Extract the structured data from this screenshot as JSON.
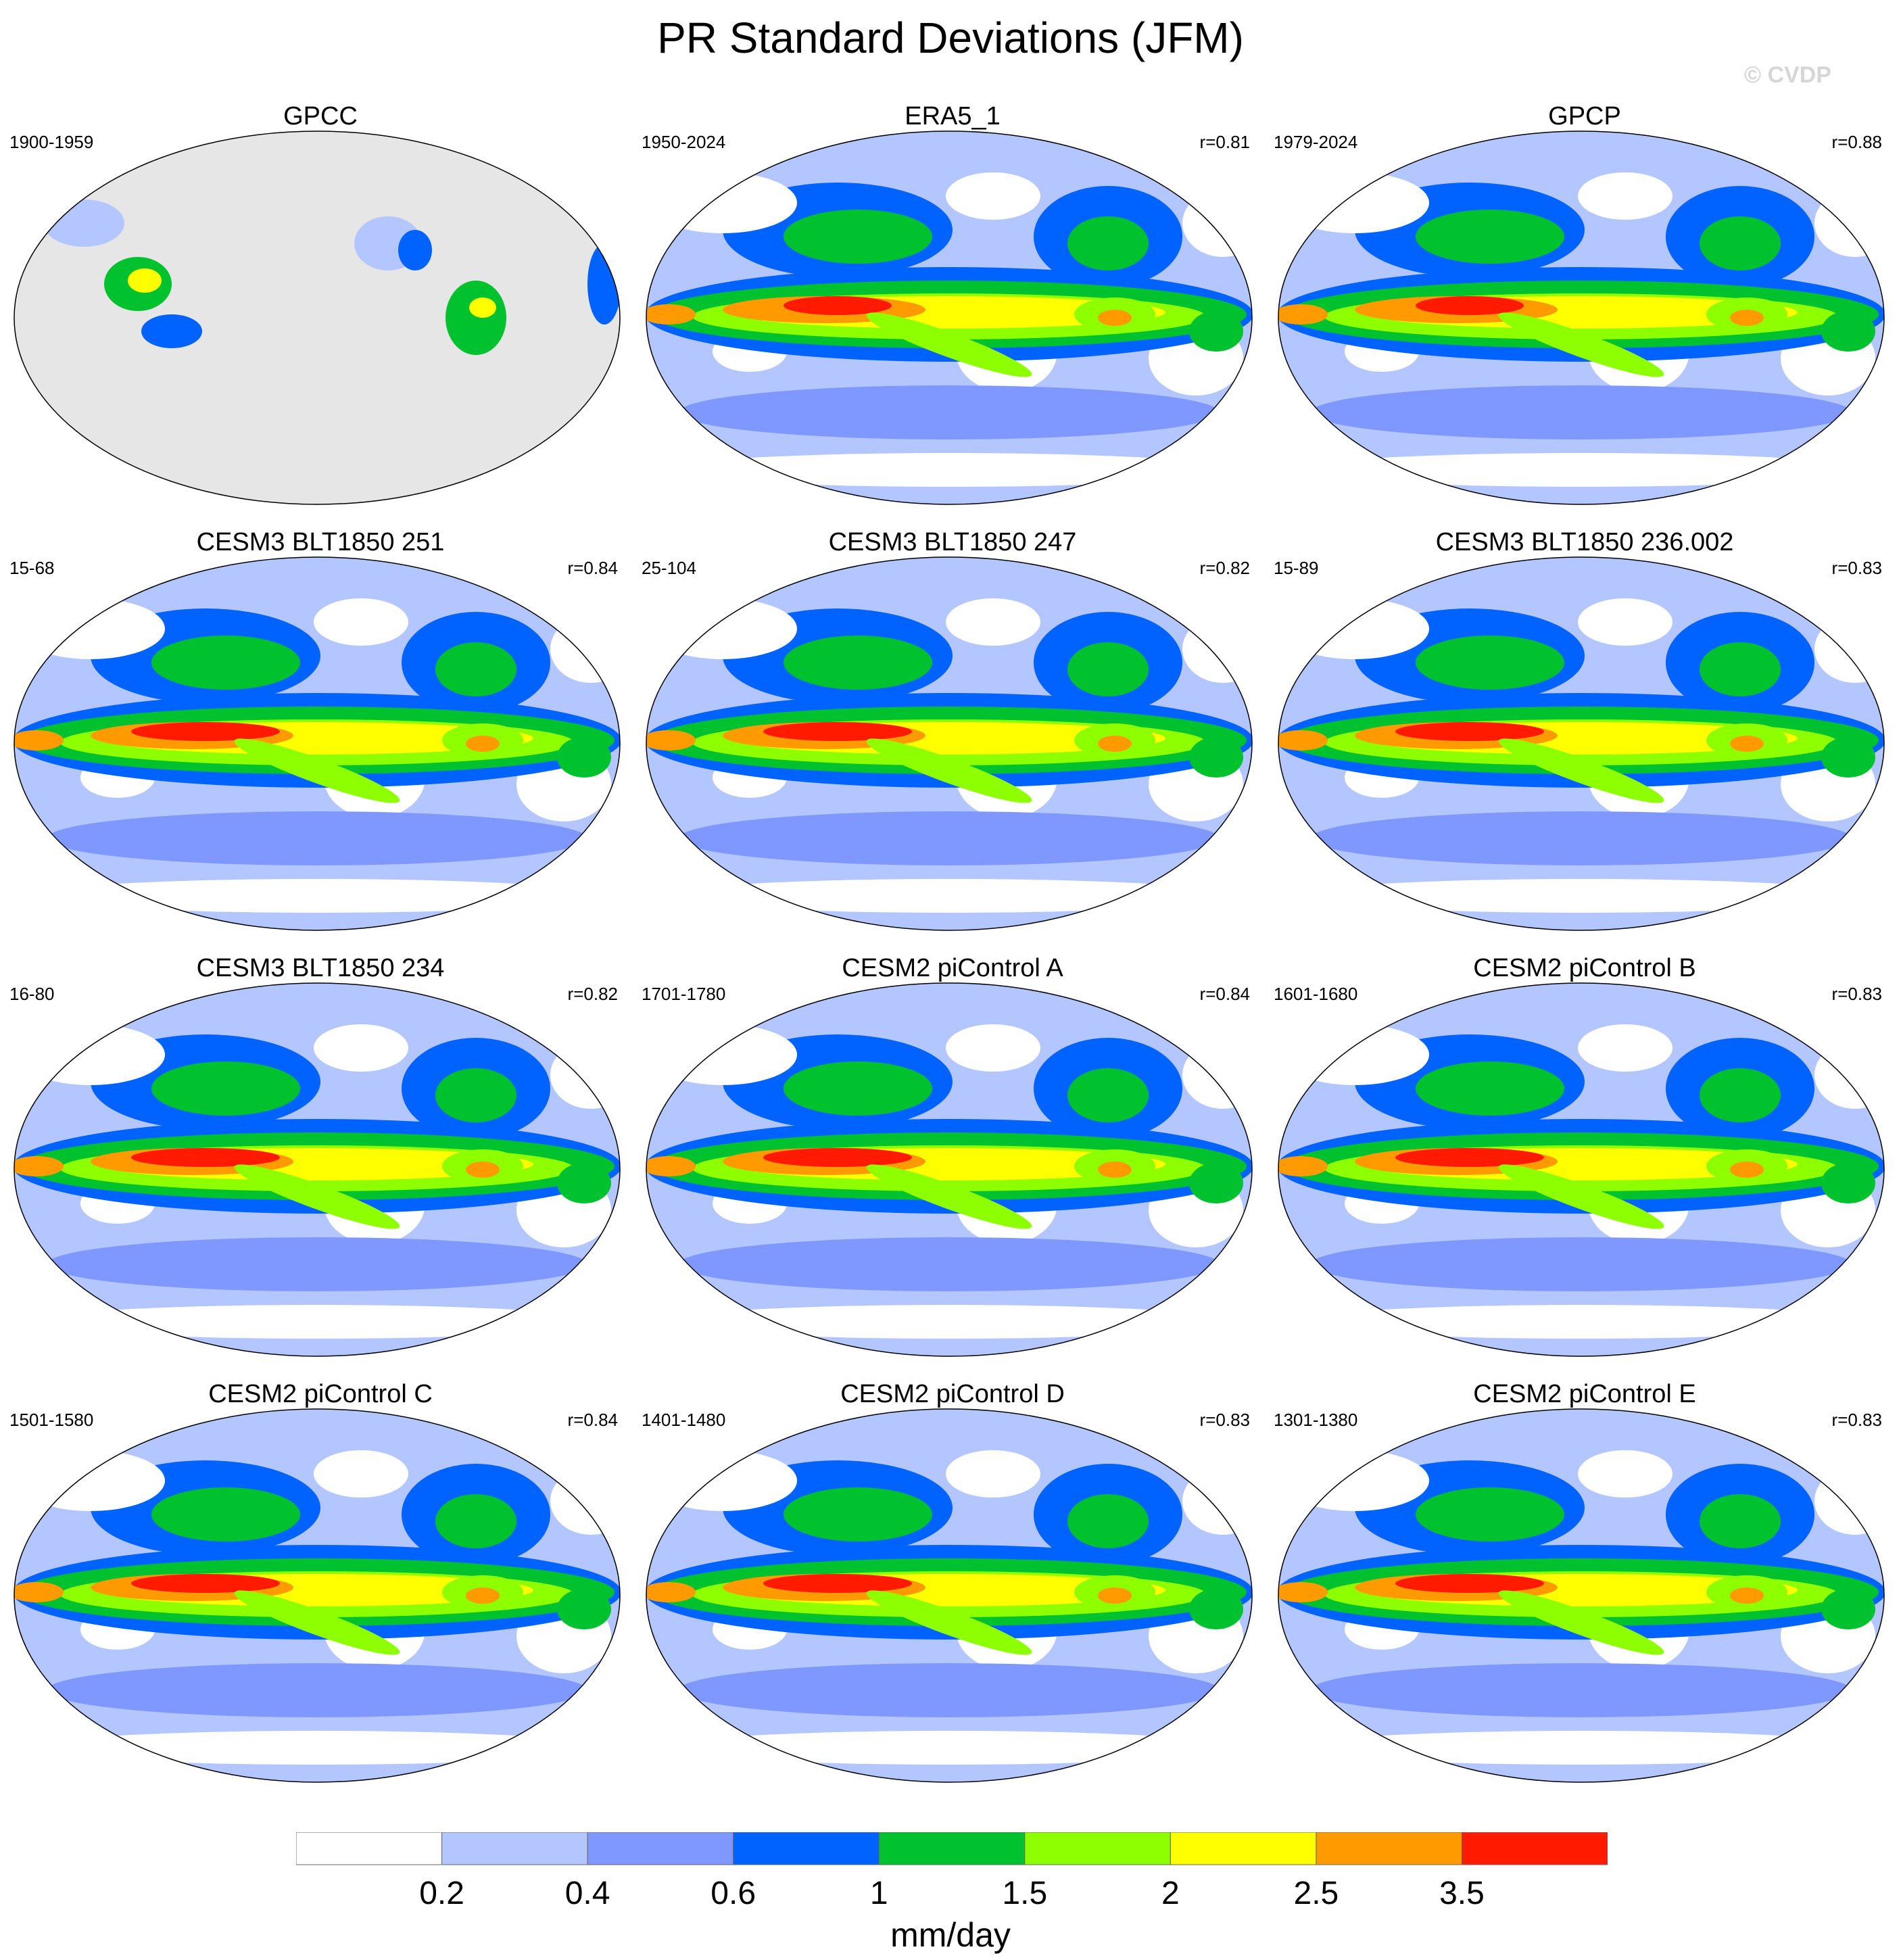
{
  "title": "PR Standard Deviations (JFM)",
  "watermark": "© CVDP",
  "panels": [
    {
      "title": "GPCC",
      "period": "1900-1959",
      "r": "",
      "variant": "gpcc"
    },
    {
      "title": "ERA5_1",
      "period": "1950-2024",
      "r": "r=0.81",
      "variant": "obs"
    },
    {
      "title": "GPCP",
      "period": "1979-2024",
      "r": "r=0.88",
      "variant": "obs"
    },
    {
      "title": "CESM3 BLT1850 251",
      "period": "15-68",
      "r": "r=0.84",
      "variant": "model"
    },
    {
      "title": "CESM3 BLT1850 247",
      "period": "25-104",
      "r": "r=0.82",
      "variant": "model"
    },
    {
      "title": "CESM3 BLT1850 236.002",
      "period": "15-89",
      "r": "r=0.83",
      "variant": "model"
    },
    {
      "title": "CESM3 BLT1850 234",
      "period": "16-80",
      "r": "r=0.82",
      "variant": "model"
    },
    {
      "title": "CESM2 piControl A",
      "period": "1701-1780",
      "r": "r=0.84",
      "variant": "model"
    },
    {
      "title": "CESM2 piControl B",
      "period": "1601-1680",
      "r": "r=0.83",
      "variant": "model"
    },
    {
      "title": "CESM2 piControl C",
      "period": "1501-1580",
      "r": "r=0.84",
      "variant": "model"
    },
    {
      "title": "CESM2 piControl D",
      "period": "1401-1480",
      "r": "r=0.83",
      "variant": "model"
    },
    {
      "title": "CESM2 piControl E",
      "period": "1301-1380",
      "r": "r=0.83",
      "variant": "model"
    }
  ],
  "colorbar": {
    "unit": "mm/day",
    "labels": [
      "0.2",
      "0.4",
      "0.6",
      "1",
      "1.5",
      "2",
      "2.5",
      "3.5"
    ],
    "colors": [
      "#ffffff",
      "#b4c6ff",
      "#7f98ff",
      "#0062ff",
      "#00c22f",
      "#8eff00",
      "#ffff00",
      "#ff9a00",
      "#ff1a00"
    ]
  },
  "land_mask_color": "#e6e6e6"
}
